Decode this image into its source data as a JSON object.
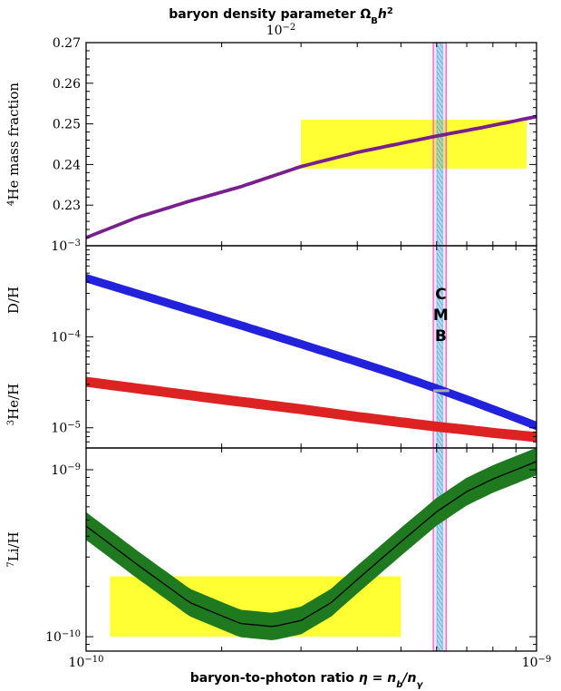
{
  "chart_data": {
    "type": "line",
    "top_title": "baryon density parameter Ω",
    "top_title_sub": "B",
    "top_title_tail": "h",
    "top_title_sup": "2",
    "top_axis_tick": "10",
    "top_axis_tick_exp": "−2",
    "xlabel_prefix": "baryon-to-photon ratio ",
    "xlabel_eta": "η = n",
    "xlabel_b": "b",
    "xlabel_slash": "/n",
    "xlabel_gamma": "γ",
    "x_scale": "log",
    "xlim": [
      1e-10,
      1e-09
    ],
    "x_ticks": [
      {
        "value": 1e-10,
        "base": "10",
        "exp": "−10"
      },
      {
        "value": 1e-09,
        "base": "10",
        "exp": "−9"
      }
    ],
    "cmb_band": {
      "center": 6.1e-10,
      "width": 4e-11,
      "outer_color": "#ff66cc",
      "inner_color": "#66ccee"
    },
    "cmb_label": [
      "C",
      "M",
      "B"
    ],
    "panels": [
      {
        "name": "helium-4",
        "ylabel_sup": "4",
        "ylabel_main": "He mass fraction",
        "y_scale": "linear",
        "ylim": [
          0.22,
          0.27
        ],
        "y_ticks": [
          {
            "value": 0.23,
            "label": "0.23"
          },
          {
            "value": 0.24,
            "label": "0.24"
          },
          {
            "value": 0.25,
            "label": "0.25"
          },
          {
            "value": 0.26,
            "label": "0.26"
          },
          {
            "value": 0.27,
            "label": "0.27"
          }
        ],
        "observation_box": {
          "x": [
            3e-10,
            9.5e-10
          ],
          "y": [
            0.239,
            0.251
          ],
          "color": "#ffff33"
        },
        "series": [
          {
            "color": "#7a1f8f",
            "x": [
              1e-10,
              1.3e-10,
              1.7e-10,
              2.2e-10,
              3e-10,
              4e-10,
              5e-10,
              6e-10,
              7.5e-10,
              1e-09
            ],
            "y": [
              0.222,
              0.227,
              0.231,
              0.2345,
              0.2395,
              0.243,
              0.2452,
              0.247,
              0.249,
              0.2518
            ],
            "width_frac": 0.0003
          }
        ]
      },
      {
        "name": "deuterium-helium-3",
        "ylabel_d": "D/H",
        "ylabel_he3_sup": "3",
        "ylabel_he3_main": "He/H",
        "y_scale": "log",
        "ylim": [
          6e-06,
          0.001
        ],
        "y_ticks": [
          {
            "value": 0.001,
            "base": "10",
            "exp": "−3"
          },
          {
            "value": 0.0001,
            "base": "10",
            "exp": "−4"
          },
          {
            "value": 1e-05,
            "base": "10",
            "exp": "−5"
          }
        ],
        "observation_marker": {
          "x": [
            5.9e-10,
            6.4e-10
          ],
          "y": 2.55e-05,
          "color": "#aaaaaa"
        },
        "series": [
          {
            "color": "#2222dd",
            "x": [
              1e-10,
              2e-10,
              3e-10,
              4e-10,
              5e-10,
              6e-10,
              7e-10,
              8e-10,
              1e-09
            ],
            "y": [
              0.00044,
              0.000155,
              8.3e-05,
              5.3e-05,
              3.7e-05,
              2.7e-05,
              2.05e-05,
              1.6e-05,
              1.05e-05
            ],
            "width_frac": 0.1
          },
          {
            "color": "#dd2222",
            "x": [
              1e-10,
              2e-10,
              3e-10,
              4e-10,
              5e-10,
              6e-10,
              7e-10,
              8e-10,
              1e-09
            ],
            "y": [
              3.2e-05,
              2.05e-05,
              1.6e-05,
              1.32e-05,
              1.15e-05,
              1.03e-05,
              9.5e-06,
              8.8e-06,
              7.9e-06
            ],
            "width_frac": 0.12
          }
        ]
      },
      {
        "name": "lithium-7",
        "ylabel_sup": "7",
        "ylabel_main": "Li/H",
        "y_scale": "log",
        "ylim": [
          8.2e-11,
          1.35e-09
        ],
        "y_ticks": [
          {
            "value": 1e-09,
            "base": "10",
            "exp": "−9"
          },
          {
            "value": 1e-10,
            "base": "10",
            "exp": "−10"
          }
        ],
        "observation_box": {
          "x": [
            1.13e-10,
            5e-10
          ],
          "y": [
            1e-10,
            2.3e-10
          ],
          "color": "#ffff33"
        },
        "series": [
          {
            "color": "#1f7a1f",
            "x": [
              1e-10,
              1.3e-10,
              1.7e-10,
              2.2e-10,
              2.6e-10,
              3e-10,
              3.5e-10,
              4e-10,
              5e-10,
              6e-10,
              7e-10,
              8e-10,
              1e-09
            ],
            "y": [
              4.6e-10,
              2.7e-10,
              1.6e-10,
              1.2e-10,
              1.15e-10,
              1.25e-10,
              1.6e-10,
              2.2e-10,
              3.7e-10,
              5.6e-10,
              7.4e-10,
              8.8e-10,
              1.12e-09
            ],
            "width_frac": 0.2,
            "center_line": "#000000"
          }
        ]
      }
    ]
  }
}
